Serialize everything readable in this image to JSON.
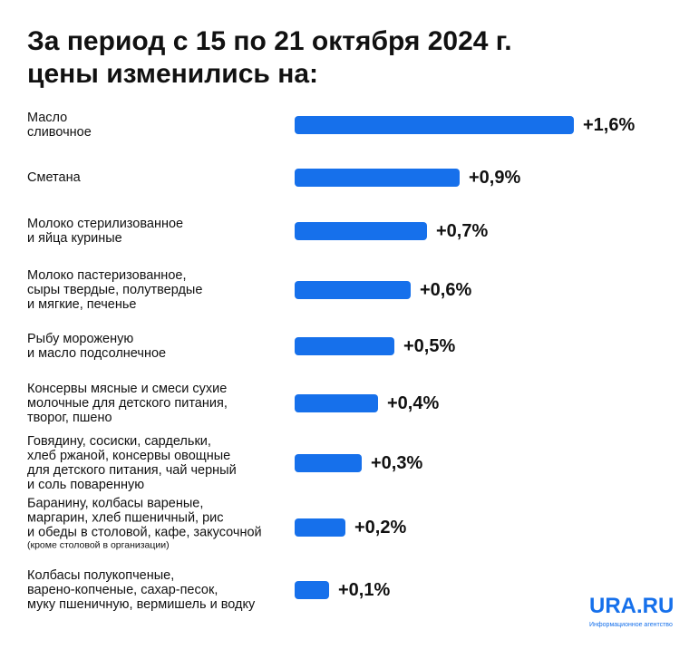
{
  "chart_data": {
    "type": "bar",
    "orientation": "horizontal",
    "title_line1": "За период с 15 по 21 октября 2024 г.",
    "title_line2": "цены изменились на:",
    "categories": [
      {
        "lines": [
          "Масло",
          "сливочное"
        ]
      },
      {
        "lines": [
          "Сметана"
        ]
      },
      {
        "lines": [
          "Молоко стерилизованное",
          "и яйца куриные"
        ]
      },
      {
        "lines": [
          "Молоко пастеризованное,",
          "сыры твердые, полутвердые",
          "и мягкие, печенье"
        ]
      },
      {
        "lines": [
          "Рыбу мороженую",
          "и масло подсолнечное"
        ]
      },
      {
        "lines": [
          "Консервы мясные и смеси сухие",
          "молочные для детского питания,",
          "творог, пшено"
        ]
      },
      {
        "lines": [
          "Говядину, сосиски, сардельки,",
          "хлеб ржаной, консервы овощные",
          "для детского питания, чай черный",
          "и соль поваренную"
        ]
      },
      {
        "lines": [
          "Баранину, колбасы вареные,",
          "маргарин, хлеб пшеничный, рис",
          "и обеды в столовой, кафе, закусочной"
        ],
        "note": "(кроме столовой в организации)"
      },
      {
        "lines": [
          "Колбасы полукопченые,",
          "варено-копченые, сахар-песок,",
          "муку пшеничную, вермишель и водку"
        ]
      }
    ],
    "values": [
      1.6,
      0.9,
      0.7,
      0.6,
      0.5,
      0.4,
      0.3,
      0.2,
      0.1
    ],
    "value_labels": [
      "+1,6%",
      "+0,9%",
      "+0,7%",
      "+0,6%",
      "+0,5%",
      "+0,4%",
      "+0,3%",
      "+0,2%",
      "+0,1%"
    ],
    "unit": "%",
    "bar_color": "#1670eb"
  },
  "logo": {
    "text": "URA.RU",
    "subtitle": "Информационное агентство"
  }
}
